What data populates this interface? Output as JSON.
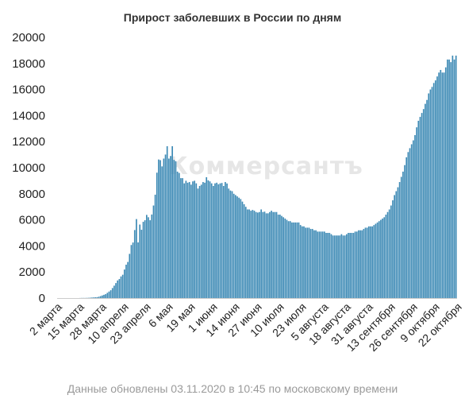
{
  "chart_data": {
    "type": "bar",
    "title": "Прирост заболевших в России по дням",
    "watermark": "Коммерсантъ",
    "footer": "Данные обновлены 03.11.2020 в 10:45 по московскому времени",
    "bar_color": "#3d8ab5",
    "ylim": [
      0,
      20000
    ],
    "yticks": [
      0,
      2000,
      4000,
      6000,
      8000,
      10000,
      12000,
      14000,
      16000,
      18000,
      20000
    ],
    "ytick_labels": [
      "0",
      "2000",
      "4000",
      "6000",
      "8000",
      "10000",
      "12000",
      "14000",
      "16000",
      "18000",
      "20000"
    ],
    "xtick_labels": [
      "2 марта",
      "15 марта",
      "28 марта",
      "10 апреля",
      "23 апреля",
      "6 мая",
      "19 мая",
      "1 июня",
      "14 июня",
      "27 июня",
      "10 июля",
      "23 июля",
      "5 августа",
      "18 августа",
      "31 августа",
      "13 сентября",
      "26 сентября",
      "9 октября",
      "22 октября"
    ],
    "xtick_step_days": 13,
    "x_start": "2020-03-02",
    "x_end": "2020-11-03",
    "series": [
      {
        "values": [
          0,
          0,
          0,
          0,
          0,
          0,
          0,
          0,
          0,
          0,
          0,
          0,
          0,
          5,
          10,
          10,
          10,
          15,
          20,
          30,
          40,
          50,
          60,
          70,
          100,
          150,
          200,
          250,
          300,
          400,
          500,
          600,
          770,
          950,
          1150,
          1350,
          1460,
          1660,
          1790,
          2190,
          2560,
          2770,
          3390,
          4070,
          4260,
          5220,
          6060,
          4270,
          5640,
          5240,
          5850,
          5970,
          6380,
          6200,
          5970,
          6410,
          7100,
          7930,
          9620,
          10630,
          10580,
          10100,
          10700,
          11010,
          11650,
          10700,
          10900,
          11650,
          10600,
          10500,
          9700,
          9600,
          9200,
          9200,
          8800,
          9000,
          8850,
          8900,
          8700,
          8950,
          9000,
          8800,
          8400,
          8600,
          8700,
          8900,
          8850,
          9270,
          9030,
          8950,
          8800,
          8600,
          8800,
          8850,
          8730,
          8800,
          8830,
          8600,
          8900,
          8790,
          8400,
          8250,
          8200,
          8000,
          7900,
          7800,
          7700,
          7600,
          7400,
          7200,
          7000,
          6800,
          6800,
          6700,
          6760,
          6700,
          6600,
          6560,
          6600,
          6800,
          6600,
          6630,
          6500,
          6500,
          6600,
          6700,
          6600,
          6600,
          6600,
          6400,
          6400,
          6300,
          6200,
          6100,
          6000,
          5900,
          5900,
          5800,
          5800,
          5800,
          5800,
          5800,
          5600,
          5500,
          5500,
          5400,
          5400,
          5400,
          5300,
          5300,
          5200,
          5200,
          5100,
          5100,
          5100,
          5100,
          5100,
          5000,
          5000,
          5000,
          4900,
          4800,
          4800,
          4800,
          4800,
          4800,
          4900,
          4800,
          4800,
          4900,
          5000,
          5000,
          5000,
          5000,
          5100,
          5100,
          5200,
          5200,
          5200,
          5300,
          5400,
          5400,
          5500,
          5500,
          5500,
          5600,
          5700,
          5800,
          5900,
          6000,
          6100,
          6200,
          6400,
          6600,
          6800,
          7100,
          7500,
          7900,
          8200,
          8500,
          8900,
          9300,
          9700,
          10200,
          10800,
          11200,
          11500,
          11800,
          12100,
          12500,
          13100,
          13600,
          13900,
          14200,
          14500,
          14900,
          15200,
          15700,
          16000,
          16200,
          16500,
          16700,
          17000,
          17300,
          17500,
          17300,
          17300,
          17700,
          18300,
          18300,
          18100,
          18600,
          18300,
          18600
        ]
      }
    ]
  }
}
